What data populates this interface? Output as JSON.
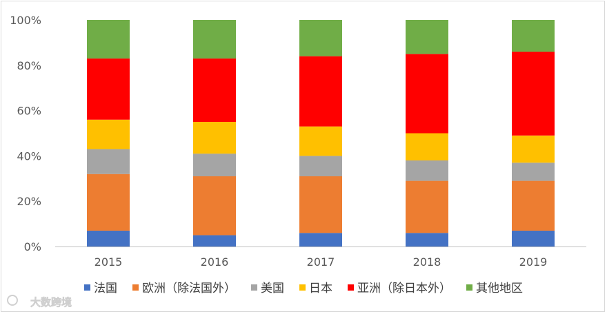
{
  "chart_data": {
    "type": "bar",
    "stacked": true,
    "percent_stacked": true,
    "categories": [
      "2015",
      "2016",
      "2017",
      "2018",
      "2019"
    ],
    "y_ticks": [
      "0%",
      "20%",
      "40%",
      "60%",
      "80%",
      "100%"
    ],
    "ylim": [
      0,
      100
    ],
    "grid": false,
    "legend_position": "bottom",
    "series": [
      {
        "name": "法国",
        "color": "#4472C4",
        "values": [
          7,
          5,
          6,
          6,
          7
        ]
      },
      {
        "name": "欧洲（除法国外）",
        "color": "#ED7D31",
        "values": [
          25,
          26,
          25,
          23,
          22
        ]
      },
      {
        "name": "美国",
        "color": "#A5A5A5",
        "values": [
          11,
          10,
          9,
          9,
          8
        ]
      },
      {
        "name": "日本",
        "color": "#FFC000",
        "values": [
          13,
          14,
          13,
          12,
          12
        ]
      },
      {
        "name": "亚洲（除日本外）",
        "color": "#FF0000",
        "values": [
          27,
          28,
          31,
          35,
          37
        ]
      },
      {
        "name": "其他地区",
        "color": "#70AD47",
        "values": [
          17,
          17,
          16,
          15,
          14
        ]
      }
    ]
  },
  "watermark": "大数跨境"
}
